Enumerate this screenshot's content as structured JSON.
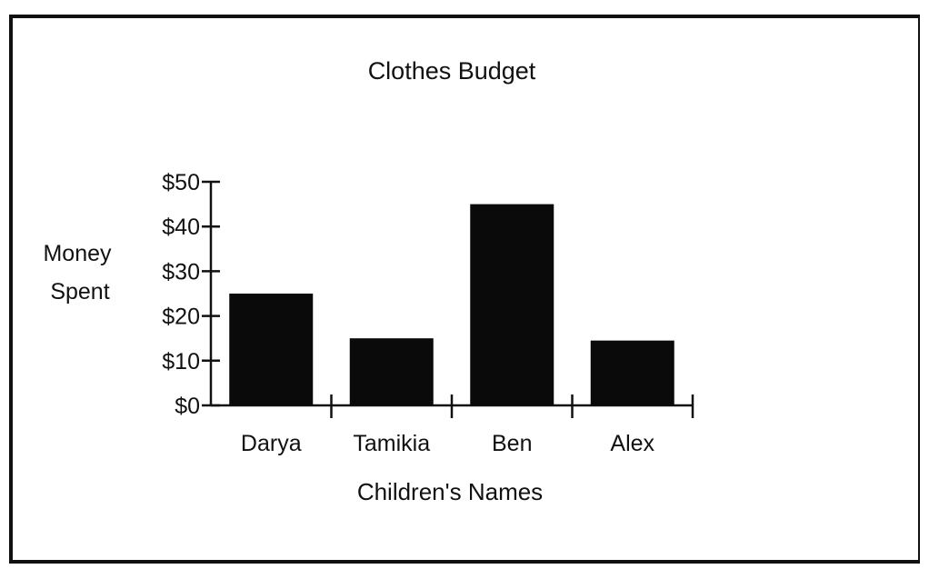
{
  "chart_data": {
    "type": "bar",
    "title": "Clothes Budget",
    "xlabel": "Children's Names",
    "ylabel": [
      "Money",
      "Spent"
    ],
    "categories": [
      "Darya",
      "Tamikia",
      "Ben",
      "Alex"
    ],
    "values": [
      25,
      15,
      45,
      14.5
    ],
    "ylim": [
      0,
      50
    ],
    "yticks": [
      "$0",
      "$10",
      "$20",
      "$30",
      "$40",
      "$50"
    ],
    "grid": false,
    "colors": {
      "bar": "#0a0a0a",
      "axis": "#111111"
    }
  }
}
